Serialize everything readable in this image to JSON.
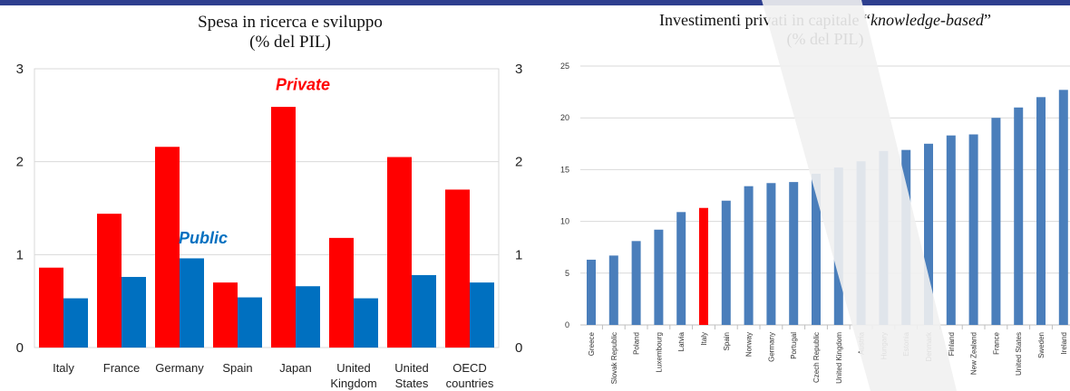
{
  "chart_data": [
    {
      "type": "bar",
      "title_line1": "Spesa in ricerca e sviluppo",
      "title_line2": "(% del PIL)",
      "categories": [
        [
          "Italy"
        ],
        [
          "France"
        ],
        [
          "Germany"
        ],
        [
          "Spain"
        ],
        [
          "Japan"
        ],
        [
          "United",
          "Kingdom"
        ],
        [
          "United",
          "States"
        ],
        [
          "OECD",
          "countries"
        ]
      ],
      "series": [
        {
          "name": "Private",
          "color": "#ff0000",
          "values": [
            0.86,
            1.44,
            2.16,
            0.7,
            2.59,
            1.18,
            2.05,
            1.7
          ]
        },
        {
          "name": "Public",
          "color": "#0070c0",
          "values": [
            0.53,
            0.76,
            0.96,
            0.54,
            0.66,
            0.53,
            0.78,
            0.7
          ]
        }
      ],
      "ylim": [
        0,
        3
      ],
      "yticks": [
        "0",
        "1",
        "2",
        "3"
      ],
      "grid": true
    },
    {
      "type": "bar",
      "title_prefix": "Investimenti privati in capitale “",
      "title_italic": "knowledge-based",
      "title_suffix": "”",
      "title_line2": "(% del PIL)",
      "categories": [
        "Greece",
        "Slovak Republic",
        "Poland",
        "Luxembourg",
        "Latvia",
        "Italy",
        "Spain",
        "Norway",
        "Germany",
        "Portugal",
        "Czech Republic",
        "United Kingdom",
        "Austria",
        "Hungary",
        "Estonia",
        "Denmark",
        "Finland",
        "New Zealand",
        "France",
        "United States",
        "Sweden",
        "Ireland"
      ],
      "values": [
        6.3,
        6.7,
        8.1,
        9.2,
        10.9,
        11.3,
        12.0,
        13.4,
        13.7,
        13.8,
        14.6,
        15.2,
        15.8,
        16.8,
        16.9,
        17.5,
        18.3,
        18.4,
        20.0,
        21.0,
        22.0,
        22.7
      ],
      "highlight": "Italy",
      "bar_color": "#4a7ebb",
      "highlight_color": "#ff0000",
      "ylim": [
        0,
        25
      ],
      "yticks": [
        "0",
        "5",
        "10",
        "15",
        "20",
        "25"
      ],
      "grid": true
    }
  ]
}
